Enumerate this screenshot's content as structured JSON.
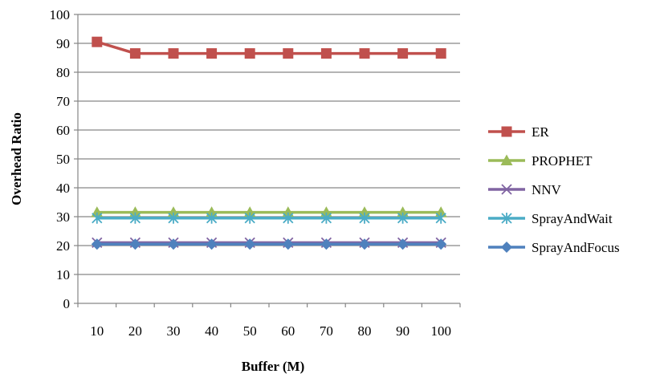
{
  "chart_data": {
    "type": "line",
    "title": "",
    "xlabel": "Buffer (M)",
    "ylabel": "Overhead Ratio",
    "categories": [
      "10",
      "20",
      "30",
      "40",
      "50",
      "60",
      "70",
      "80",
      "90",
      "100"
    ],
    "ylim": [
      0,
      100
    ],
    "yticks": [
      "0",
      "10",
      "20",
      "30",
      "40",
      "50",
      "60",
      "70",
      "80",
      "90",
      "100"
    ],
    "grid": true,
    "legend_position": "right",
    "series": [
      {
        "name": "ER",
        "color": "#C0504D",
        "marker": "square",
        "values": [
          90.5,
          86.5,
          86.5,
          86.5,
          86.5,
          86.5,
          86.5,
          86.5,
          86.5,
          86.5
        ]
      },
      {
        "name": "PROPHET",
        "color": "#9BBB59",
        "marker": "triangle",
        "values": [
          31.5,
          31.5,
          31.5,
          31.5,
          31.5,
          31.5,
          31.5,
          31.5,
          31.5,
          31.5
        ]
      },
      {
        "name": "NNV",
        "color": "#8064A2",
        "marker": "x",
        "values": [
          21,
          21,
          21,
          21,
          21,
          21,
          21,
          21,
          21,
          21
        ]
      },
      {
        "name": "SprayAndWait",
        "color": "#4BACC6",
        "marker": "asterisk",
        "values": [
          29.5,
          29.5,
          29.5,
          29.5,
          29.5,
          29.5,
          29.5,
          29.5,
          29.5,
          29.5
        ]
      },
      {
        "name": "SprayAndFocus",
        "color": "#4F81BD",
        "marker": "diamond",
        "values": [
          20.5,
          20.5,
          20.5,
          20.5,
          20.5,
          20.5,
          20.5,
          20.5,
          20.5,
          20.5
        ]
      }
    ]
  }
}
